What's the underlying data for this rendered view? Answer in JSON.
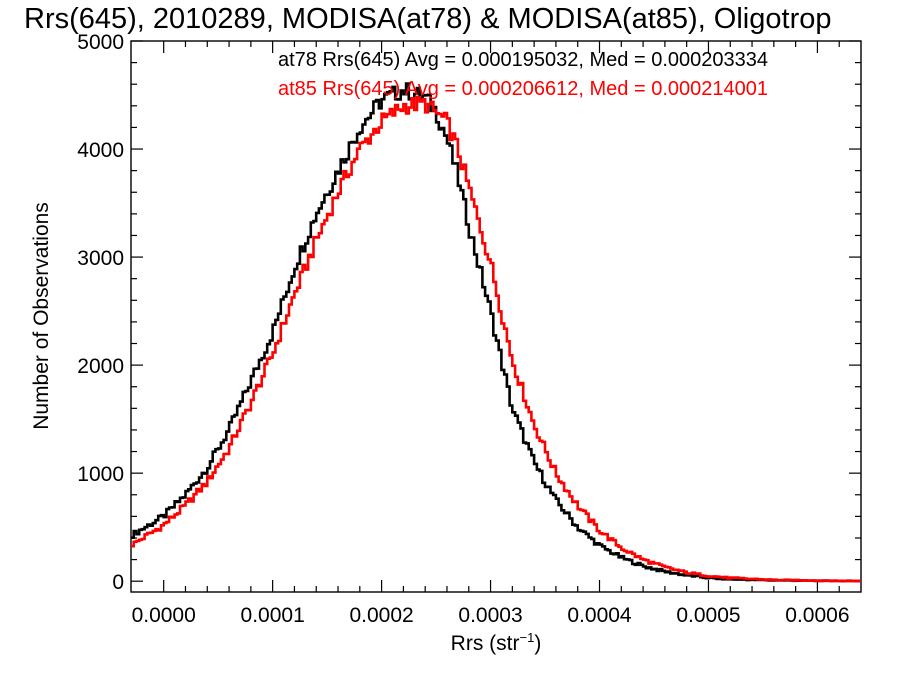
{
  "chart_data": {
    "type": "step",
    "title": "Rrs(645), 2010289, MODISA(at78) & MODISA(at85), Oligotrop",
    "xlabel_main": "Rrs (str",
    "xlabel_sup": "−1",
    "xlabel_close": ")",
    "ylabel": "Number of Observations",
    "xlim": [
      -3e-05,
      0.00064
    ],
    "ylim": [
      -100,
      5000
    ],
    "xticks": [
      0.0,
      0.0001,
      0.0002,
      0.0003,
      0.0004,
      0.0005,
      0.0006
    ],
    "xtick_labels": [
      "0.0000",
      "0.0001",
      "0.0002",
      "0.0003",
      "0.0004",
      "0.0005",
      "0.0006"
    ],
    "yticks": [
      0,
      1000,
      2000,
      3000,
      4000,
      5000
    ],
    "ytick_labels": [
      "0",
      "1000",
      "2000",
      "3000",
      "4000",
      "5000"
    ],
    "legend_position": "top-right",
    "series": [
      {
        "name": "at78",
        "label": "at78 Rrs(645) Avg = 0.000195032, Med = 0.000203334",
        "color": "#000000",
        "points": [
          [
            -3e-05,
            420
          ],
          [
            0.0,
            600
          ],
          [
            2e-05,
            800
          ],
          [
            4e-05,
            1050
          ],
          [
            6e-05,
            1400
          ],
          [
            8e-05,
            1850
          ],
          [
            0.0001,
            2300
          ],
          [
            0.00012,
            2900
          ],
          [
            0.00014,
            3400
          ],
          [
            0.00016,
            3800
          ],
          [
            0.00018,
            4200
          ],
          [
            0.0002,
            4450
          ],
          [
            0.00022,
            4550
          ],
          [
            0.00024,
            4480
          ],
          [
            0.00025,
            4350
          ],
          [
            0.00026,
            4100
          ],
          [
            0.00027,
            3750
          ],
          [
            0.00028,
            3300
          ],
          [
            0.0003,
            2500
          ],
          [
            0.00032,
            1600
          ],
          [
            0.00034,
            1100
          ],
          [
            0.00036,
            750
          ],
          [
            0.00038,
            500
          ],
          [
            0.0004,
            330
          ],
          [
            0.00042,
            220
          ],
          [
            0.00044,
            140
          ],
          [
            0.00046,
            90
          ],
          [
            0.00048,
            55
          ],
          [
            0.0005,
            30
          ],
          [
            0.00052,
            18
          ],
          [
            0.00056,
            8
          ],
          [
            0.0006,
            4
          ],
          [
            0.00064,
            2
          ]
        ]
      },
      {
        "name": "at85",
        "label": "at85 Rrs(645) Avg = 0.000206612, Med = 0.000214001",
        "color": "#ff0000",
        "points": [
          [
            -3e-05,
            330
          ],
          [
            0.0,
            520
          ],
          [
            2e-05,
            700
          ],
          [
            4e-05,
            920
          ],
          [
            6e-05,
            1230
          ],
          [
            8e-05,
            1650
          ],
          [
            0.0001,
            2100
          ],
          [
            0.00012,
            2650
          ],
          [
            0.00014,
            3150
          ],
          [
            0.00016,
            3600
          ],
          [
            0.00018,
            4000
          ],
          [
            0.0002,
            4250
          ],
          [
            0.00022,
            4400
          ],
          [
            0.00024,
            4420
          ],
          [
            0.00026,
            4250
          ],
          [
            0.00027,
            4000
          ],
          [
            0.00028,
            3650
          ],
          [
            0.0003,
            2950
          ],
          [
            0.00032,
            2050
          ],
          [
            0.00034,
            1450
          ],
          [
            0.00036,
            1000
          ],
          [
            0.00038,
            700
          ],
          [
            0.0004,
            470
          ],
          [
            0.00042,
            310
          ],
          [
            0.00044,
            200
          ],
          [
            0.00046,
            130
          ],
          [
            0.00048,
            80
          ],
          [
            0.0005,
            50
          ],
          [
            0.00052,
            30
          ],
          [
            0.00056,
            12
          ],
          [
            0.0006,
            5
          ],
          [
            0.00064,
            2
          ]
        ]
      }
    ]
  }
}
